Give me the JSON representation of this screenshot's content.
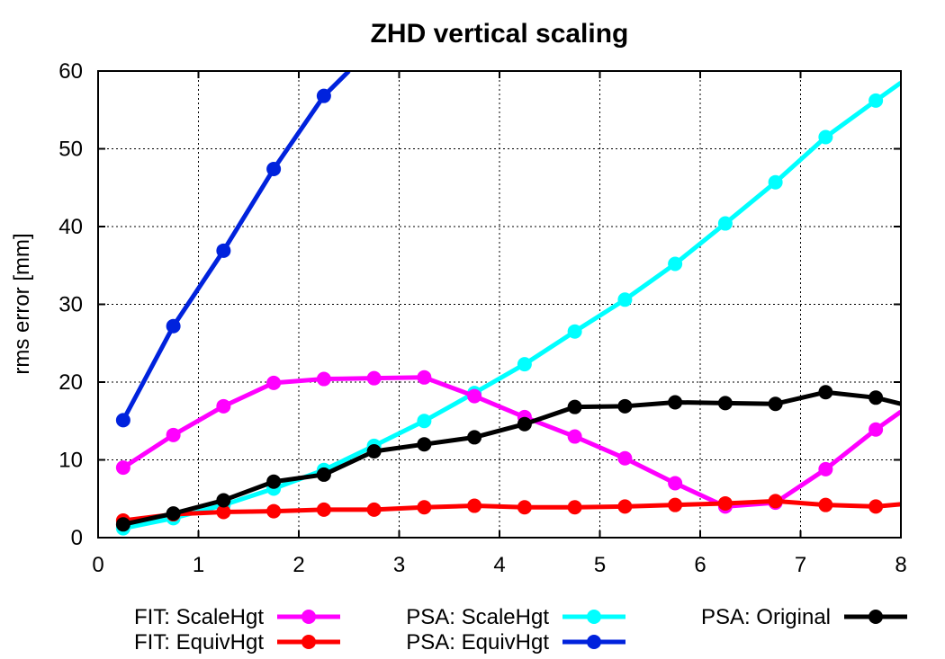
{
  "chart_data": {
    "type": "line",
    "title": "ZHD vertical scaling",
    "xlabel": "",
    "ylabel": "rms error [mm]",
    "xlim": [
      0,
      8
    ],
    "ylim": [
      0,
      60
    ],
    "xticks": [
      "0",
      "1",
      "2",
      "3",
      "4",
      "5",
      "6",
      "7",
      "8"
    ],
    "yticks": [
      "0",
      "10",
      "20",
      "30",
      "40",
      "50",
      "60"
    ],
    "grid": true,
    "legend_position": "bottom",
    "series": [
      {
        "name": "FIT: ScaleHgt",
        "color": "#ff00ff",
        "x": [
          0.25,
          0.75,
          1.25,
          1.75,
          2.25,
          2.75,
          3.25,
          3.75,
          4.25,
          4.75,
          5.25,
          5.75,
          6.25,
          6.75,
          7.25,
          7.75,
          8.0
        ],
        "y": [
          9.0,
          13.2,
          16.9,
          19.9,
          20.4,
          20.5,
          20.6,
          18.2,
          15.5,
          13.0,
          10.2,
          7.0,
          4.0,
          4.5,
          8.8,
          13.9,
          16.2
        ]
      },
      {
        "name": "FIT: EquivHgt",
        "color": "#ff0000",
        "x": [
          0.25,
          0.75,
          1.25,
          1.75,
          2.25,
          2.75,
          3.25,
          3.75,
          4.25,
          4.75,
          5.25,
          5.75,
          6.25,
          6.75,
          7.25,
          7.75,
          8.0
        ],
        "y": [
          2.2,
          3.0,
          3.3,
          3.4,
          3.6,
          3.6,
          3.9,
          4.1,
          3.9,
          3.9,
          4.0,
          4.2,
          4.4,
          4.7,
          4.2,
          4.0,
          4.3
        ]
      },
      {
        "name": "PSA: ScaleHgt",
        "color": "#00ffff",
        "x": [
          0.25,
          0.75,
          1.25,
          1.75,
          2.25,
          2.75,
          3.25,
          3.75,
          4.25,
          4.75,
          5.25,
          5.75,
          6.25,
          6.75,
          7.25,
          7.75,
          8.0
        ],
        "y": [
          1.2,
          2.5,
          4.2,
          6.3,
          8.7,
          11.8,
          15.0,
          18.6,
          22.3,
          26.5,
          30.6,
          35.2,
          40.4,
          45.7,
          51.5,
          56.2,
          58.5
        ]
      },
      {
        "name": "PSA: EquivHgt",
        "color": "#0022dd",
        "x": [
          0.25,
          0.75,
          1.25,
          1.75,
          2.25,
          2.5
        ],
        "y": [
          15.1,
          27.2,
          36.9,
          47.4,
          56.8,
          60.0
        ],
        "markers_excluding_last": true
      },
      {
        "name": "PSA: Original",
        "color": "#000000",
        "x": [
          0.25,
          0.75,
          1.25,
          1.75,
          2.25,
          2.75,
          3.25,
          3.75,
          4.25,
          4.75,
          5.25,
          5.75,
          6.25,
          6.75,
          7.25,
          7.75,
          8.0
        ],
        "y": [
          1.7,
          3.1,
          4.8,
          7.2,
          8.1,
          11.1,
          12.0,
          12.9,
          14.6,
          16.8,
          16.9,
          17.4,
          17.3,
          17.2,
          18.7,
          18.0,
          17.2
        ]
      }
    ]
  }
}
